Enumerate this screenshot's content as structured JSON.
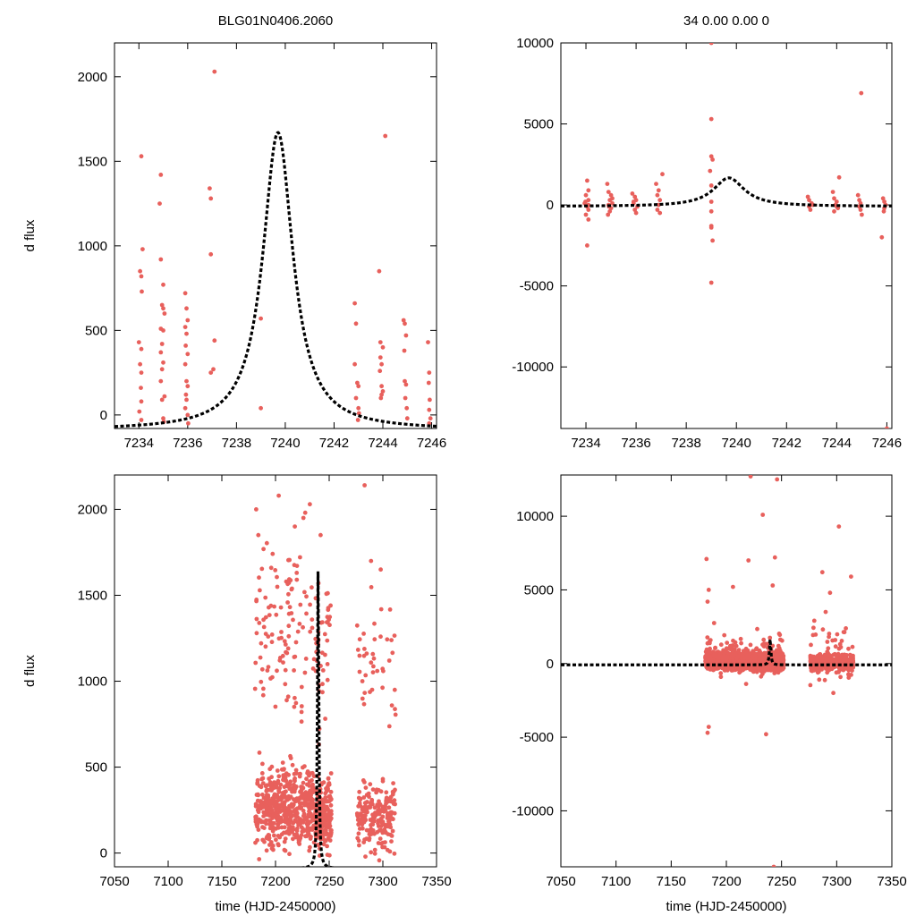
{
  "figure": {
    "ylabel": "d flux",
    "xlabel": "time (HJD-2450000)"
  },
  "chart_data": [
    {
      "type": "scatter",
      "panel": "top-left",
      "title": "BLG01N0406.2060",
      "ylabel": "d flux",
      "xlabel": "",
      "xlim": [
        7233,
        7246.2
      ],
      "ylim": [
        -80,
        2200
      ],
      "xticks": [
        7234,
        7236,
        7238,
        7240,
        7242,
        7244,
        7246
      ],
      "yticks": [
        0,
        500,
        1000,
        1500,
        2000
      ],
      "model": {
        "t0": 7239.7,
        "peak": 1670,
        "tau": 0.75,
        "baseline": -90
      },
      "series": [
        {
          "points": [
            [
              7234.1,
              1530
            ],
            [
              7234.15,
              980
            ],
            [
              7234.05,
              850
            ],
            [
              7234.1,
              820
            ],
            [
              7234.12,
              730
            ],
            [
              7234.0,
              430
            ],
            [
              7234.1,
              390
            ],
            [
              7234.05,
              300
            ],
            [
              7234.1,
              250
            ],
            [
              7234.08,
              160
            ],
            [
              7234.1,
              80
            ],
            [
              7234.02,
              20
            ],
            [
              7234.1,
              -30
            ],
            [
              7234.9,
              1420
            ],
            [
              7234.85,
              1250
            ],
            [
              7234.9,
              920
            ],
            [
              7235.0,
              770
            ],
            [
              7234.95,
              650
            ],
            [
              7235.0,
              630
            ],
            [
              7235.05,
              600
            ],
            [
              7234.9,
              510
            ],
            [
              7235.0,
              500
            ],
            [
              7234.95,
              420
            ],
            [
              7234.9,
              370
            ],
            [
              7235.0,
              310
            ],
            [
              7234.95,
              270
            ],
            [
              7234.9,
              200
            ],
            [
              7235.05,
              110
            ],
            [
              7234.95,
              90
            ],
            [
              7235.0,
              -20
            ],
            [
              7235.02,
              -40
            ],
            [
              7235.9,
              720
            ],
            [
              7235.95,
              630
            ],
            [
              7236.0,
              560
            ],
            [
              7235.9,
              520
            ],
            [
              7235.95,
              480
            ],
            [
              7235.92,
              410
            ],
            [
              7236.0,
              360
            ],
            [
              7235.9,
              300
            ],
            [
              7235.95,
              200
            ],
            [
              7236.0,
              170
            ],
            [
              7235.93,
              120
            ],
            [
              7235.95,
              90
            ],
            [
              7235.9,
              40
            ],
            [
              7236.0,
              0
            ],
            [
              7236.02,
              -50
            ],
            [
              7236.9,
              1340
            ],
            [
              7236.95,
              1280
            ],
            [
              7236.95,
              950
            ],
            [
              7237.1,
              440
            ],
            [
              7236.95,
              250
            ],
            [
              7237.05,
              270
            ],
            [
              7237.1,
              2030
            ],
            [
              7239.0,
              570
            ],
            [
              7239.0,
              40
            ],
            [
              7242.85,
              660
            ],
            [
              7242.9,
              540
            ],
            [
              7242.85,
              300
            ],
            [
              7242.95,
              190
            ],
            [
              7243.0,
              170
            ],
            [
              7242.9,
              100
            ],
            [
              7243.0,
              40
            ],
            [
              7243.02,
              10
            ],
            [
              7242.98,
              -30
            ],
            [
              7243.85,
              850
            ],
            [
              7243.9,
              430
            ],
            [
              7244.0,
              400
            ],
            [
              7243.9,
              340
            ],
            [
              7243.95,
              300
            ],
            [
              7243.88,
              260
            ],
            [
              7243.95,
              170
            ],
            [
              7244.0,
              140
            ],
            [
              7243.95,
              120
            ],
            [
              7243.92,
              100
            ],
            [
              7244.1,
              1650
            ],
            [
              7244.85,
              560
            ],
            [
              7244.9,
              540
            ],
            [
              7244.95,
              470
            ],
            [
              7244.88,
              380
            ],
            [
              7244.9,
              200
            ],
            [
              7244.95,
              180
            ],
            [
              7244.92,
              100
            ],
            [
              7244.98,
              40
            ],
            [
              7245.0,
              -20
            ],
            [
              7245.85,
              430
            ],
            [
              7245.9,
              250
            ],
            [
              7245.88,
              190
            ],
            [
              7245.92,
              90
            ],
            [
              7245.9,
              30
            ],
            [
              7245.95,
              -20
            ],
            [
              7245.9,
              -50
            ]
          ]
        }
      ]
    },
    {
      "type": "scatter",
      "panel": "top-right",
      "title": "34  0.00  0.00  0",
      "ylabel": "",
      "xlabel": "",
      "xlim": [
        7233,
        7246.2
      ],
      "ylim": [
        -13800,
        10000
      ],
      "xticks": [
        7234,
        7236,
        7238,
        7240,
        7242,
        7244,
        7246
      ],
      "yticks": [
        -10000,
        -5000,
        0,
        5000,
        10000
      ],
      "model": {
        "t0": 7239.7,
        "peak": 1670,
        "tau": 0.75,
        "baseline": -90
      },
      "series": [
        {
          "points": [
            [
              7234.05,
              1500
            ],
            [
              7234.1,
              900
            ],
            [
              7234.0,
              600
            ],
            [
              7234.1,
              300
            ],
            [
              7233.95,
              100
            ],
            [
              7234.05,
              -100
            ],
            [
              7234.1,
              -300
            ],
            [
              7234.0,
              -600
            ],
            [
              7234.1,
              -900
            ],
            [
              7234.05,
              -2500
            ],
            [
              7234.1,
              0
            ],
            [
              7233.98,
              200
            ],
            [
              7234.85,
              1300
            ],
            [
              7234.9,
              800
            ],
            [
              7235.0,
              600
            ],
            [
              7234.95,
              300
            ],
            [
              7235.05,
              100
            ],
            [
              7234.9,
              0
            ],
            [
              7235.0,
              -200
            ],
            [
              7234.95,
              -400
            ],
            [
              7234.88,
              -600
            ],
            [
              7235.05,
              400
            ],
            [
              7234.92,
              -100
            ],
            [
              7235.85,
              700
            ],
            [
              7235.95,
              500
            ],
            [
              7236.0,
              300
            ],
            [
              7235.9,
              100
            ],
            [
              7236.05,
              -100
            ],
            [
              7235.95,
              -300
            ],
            [
              7236.0,
              -500
            ],
            [
              7235.9,
              200
            ],
            [
              7236.8,
              1300
            ],
            [
              7236.9,
              900
            ],
            [
              7236.85,
              600
            ],
            [
              7236.95,
              300
            ],
            [
              7236.9,
              0
            ],
            [
              7236.85,
              -300
            ],
            [
              7236.95,
              -500
            ],
            [
              7237.05,
              1900
            ],
            [
              7239.0,
              10000
            ],
            [
              7239.0,
              5300
            ],
            [
              7239.0,
              3000
            ],
            [
              7239.05,
              2800
            ],
            [
              7238.95,
              2100
            ],
            [
              7239.0,
              1200
            ],
            [
              7239.0,
              200
            ],
            [
              7239.0,
              -400
            ],
            [
              7239.0,
              -1300
            ],
            [
              7239.05,
              -2200
            ],
            [
              7239.0,
              -4800
            ],
            [
              7239.0,
              -1400
            ],
            [
              7242.85,
              500
            ],
            [
              7242.9,
              300
            ],
            [
              7243.0,
              100
            ],
            [
              7242.9,
              -100
            ],
            [
              7242.95,
              -300
            ],
            [
              7243.05,
              0
            ],
            [
              7243.85,
              800
            ],
            [
              7243.9,
              400
            ],
            [
              7244.0,
              200
            ],
            [
              7243.95,
              0
            ],
            [
              7244.05,
              -200
            ],
            [
              7243.9,
              -400
            ],
            [
              7244.1,
              1700
            ],
            [
              7244.0,
              -100
            ],
            [
              7244.85,
              600
            ],
            [
              7244.9,
              300
            ],
            [
              7244.95,
              100
            ],
            [
              7244.9,
              -100
            ],
            [
              7244.95,
              -300
            ],
            [
              7245.0,
              -600
            ],
            [
              7244.98,
              6900
            ],
            [
              7245.85,
              400
            ],
            [
              7245.9,
              200
            ],
            [
              7245.95,
              0
            ],
            [
              7245.9,
              -200
            ],
            [
              7245.88,
              -400
            ],
            [
              7245.8,
              -2000
            ],
            [
              7246.0,
              -13800
            ]
          ]
        }
      ]
    },
    {
      "type": "scatter",
      "panel": "bottom-left",
      "title": "",
      "ylabel": "d flux",
      "xlabel": "time (HJD-2450000)",
      "xlim": [
        7050,
        7350
      ],
      "ylim": [
        -80,
        2200
      ],
      "xticks": [
        7050,
        7100,
        7150,
        7200,
        7250,
        7300,
        7350
      ],
      "yticks": [
        0,
        500,
        1000,
        1500,
        2000
      ],
      "model": {
        "t0": 7239.7,
        "peak": 1670,
        "tau": 0.75,
        "baseline": -90
      },
      "series": [
        {
          "generated": {
            "seed": 11,
            "clusters": [
              {
                "x0": 7181,
                "x1": 7236,
                "n": 520,
                "ymin": -70,
                "ymax": 600
              },
              {
                "x0": 7181,
                "x1": 7236,
                "n": 110,
                "ymin": 600,
                "ymax": 2000
              },
              {
                "x0": 7237,
                "x1": 7252,
                "n": 220,
                "ymin": -70,
                "ymax": 500
              },
              {
                "x0": 7237,
                "x1": 7252,
                "n": 40,
                "ymin": 500,
                "ymax": 1800
              },
              {
                "x0": 7276,
                "x1": 7312,
                "n": 200,
                "ymin": -70,
                "ymax": 500
              },
              {
                "x0": 7276,
                "x1": 7312,
                "n": 40,
                "ymin": 500,
                "ymax": 1700
              }
            ]
          },
          "points": [
            [
              7182,
              2000
            ],
            [
              7184,
              1850
            ],
            [
              7203,
              2080
            ],
            [
              7210,
              1580
            ],
            [
              7218,
              1900
            ],
            [
              7226,
              1950
            ],
            [
              7232,
              2030
            ],
            [
              7242,
              1850
            ],
            [
              7283,
              2140
            ],
            [
              7289,
              1700
            ],
            [
              7306,
              1120
            ],
            [
              7298,
              1650
            ]
          ]
        }
      ]
    },
    {
      "type": "scatter",
      "panel": "bottom-right",
      "title": "",
      "ylabel": "",
      "xlabel": "time (HJD-2450000)",
      "xlim": [
        7050,
        7350
      ],
      "ylim": [
        -13800,
        12800
      ],
      "xticks": [
        7050,
        7100,
        7150,
        7200,
        7250,
        7300,
        7350
      ],
      "yticks": [
        -10000,
        -5000,
        0,
        5000,
        10000
      ],
      "model": {
        "t0": 7239.7,
        "peak": 1670,
        "tau": 0.75,
        "baseline": -90
      },
      "series": [
        {
          "generated": {
            "seed": 23,
            "clusters": [
              {
                "x0": 7181,
                "x1": 7236,
                "n": 900,
                "ymin": -700,
                "ymax": 1000
              },
              {
                "x0": 7181,
                "x1": 7236,
                "n": 110,
                "ymin": -1800,
                "ymax": 3000
              },
              {
                "x0": 7237,
                "x1": 7252,
                "n": 300,
                "ymin": -700,
                "ymax": 900
              },
              {
                "x0": 7237,
                "x1": 7252,
                "n": 40,
                "ymin": -1500,
                "ymax": 2800
              },
              {
                "x0": 7276,
                "x1": 7315,
                "n": 420,
                "ymin": -700,
                "ymax": 800
              },
              {
                "x0": 7276,
                "x1": 7315,
                "n": 50,
                "ymin": -2000,
                "ymax": 3500
              }
            ]
          },
          "points": [
            [
              7182,
              7100
            ],
            [
              7184,
              5000
            ],
            [
              7183,
              4200
            ],
            [
              7184,
              -4300
            ],
            [
              7183,
              -4700
            ],
            [
              7206,
              5200
            ],
            [
              7222,
              12700
            ],
            [
              7220,
              7000
            ],
            [
              7233,
              10100
            ],
            [
              7244,
              7200
            ],
            [
              7246,
              12500
            ],
            [
              7242,
              5300
            ],
            [
              7236,
              -4800
            ],
            [
              7243,
              -13800
            ],
            [
              7287,
              6200
            ],
            [
              7294,
              4800
            ],
            [
              7302,
              9300
            ],
            [
              7313,
              5900
            ],
            [
              7297,
              -2000
            ],
            [
              7290,
              3500
            ]
          ]
        }
      ]
    }
  ]
}
